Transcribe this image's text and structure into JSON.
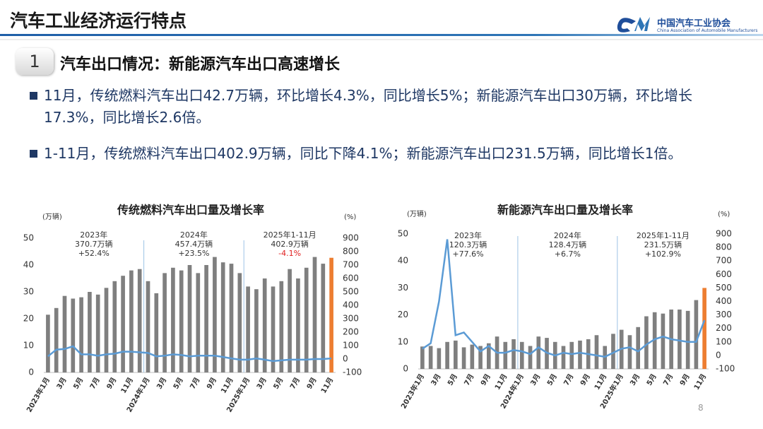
{
  "header": {
    "title": "汽车工业经济运行特点",
    "org_cn": "中国汽车工业协会",
    "org_en": "China Association of Automobile Manufacturers"
  },
  "section": {
    "number": "1",
    "title": "汽车出口情况：新能源汽车出口高速增长"
  },
  "bullets": [
    "11月，传统燃料汽车出口42.7万辆，环比增长4.3%，同比增长5%；新能源汽车出口30万辆，环比增长17.3%，同比增长2.6倍。",
    "1-11月，传统燃料汽车出口402.9万辆，同比下降4.1%；新能源汽车出口231.5万辆，同比增长1倍。"
  ],
  "page_number": "8",
  "chart_data": [
    {
      "type": "bar_line",
      "title": "传统燃料汽车出口量及增长率",
      "y_unit": "(万辆)",
      "y2_unit": "(%)",
      "categories": [
        "2023年1月",
        null,
        "3月",
        null,
        "5月",
        null,
        "7月",
        null,
        "9月",
        null,
        "11月",
        null,
        "2024年1月",
        null,
        "3月",
        null,
        "5月",
        null,
        "7月",
        null,
        "9月",
        null,
        "11月",
        null,
        "2025年1月",
        null,
        "3月",
        null,
        "5月",
        null,
        "7月",
        null,
        "9月",
        null,
        "11月"
      ],
      "series": [
        {
          "color": "#7f7f7f",
          "highlight_color": "#ed7d31",
          "values": [
            21.5,
            24,
            28.5,
            27.5,
            28,
            30,
            29,
            31.5,
            34,
            36,
            38,
            38.5,
            34,
            29.5,
            37,
            39,
            38,
            40,
            37,
            40,
            43,
            41,
            40.5,
            37,
            32,
            31,
            35,
            32,
            34,
            38.5,
            35,
            39,
            43,
            40.5,
            42.7
          ]
        },
        {
          "axis": "y2",
          "color": "#5b9bd5",
          "values": [
            20,
            70,
            75,
            95,
            35,
            35,
            25,
            35,
            40,
            55,
            55,
            50,
            45,
            20,
            25,
            35,
            30,
            20,
            25,
            25,
            25,
            15,
            5,
            -5,
            -5,
            5,
            -5,
            -15,
            -10,
            -5,
            -5,
            -5,
            0,
            0,
            5
          ]
        }
      ],
      "ylim": [
        0,
        50
      ],
      "yticks": [
        0,
        10,
        20,
        30,
        40,
        50
      ],
      "y2lim": [
        -100,
        900
      ],
      "y2ticks": [
        -100,
        0,
        100,
        200,
        300,
        400,
        500,
        600,
        700,
        800,
        900
      ],
      "annotations": [
        {
          "lines": [
            "2023年",
            "370.7万辆",
            "+52.4%"
          ],
          "colors": [
            "#333333",
            "#333333",
            "#333333"
          ]
        },
        {
          "lines": [
            "2024年",
            "457.4万辆",
            "+23.5%"
          ],
          "colors": [
            "#333333",
            "#333333",
            "#333333"
          ]
        },
        {
          "lines": [
            "2025年1-11月",
            "402.9万辆",
            "-4.1%"
          ],
          "colors": [
            "#333333",
            "#333333",
            "#e02020"
          ]
        }
      ]
    },
    {
      "type": "bar_line",
      "title": "新能源汽车出口量及增长率",
      "y_unit": "(万辆)",
      "y2_unit": "(%)",
      "categories": [
        "2023年1月",
        null,
        "3月",
        null,
        "5月",
        null,
        "7月",
        null,
        "9月",
        null,
        "11月",
        null,
        "2024年1月",
        null,
        "3月",
        null,
        "5月",
        null,
        "7月",
        null,
        "9月",
        null,
        "11月",
        null,
        "2025年1月",
        null,
        "3月",
        null,
        "5月",
        null,
        "7月",
        null,
        "9月",
        null,
        "11月"
      ],
      "series": [
        {
          "color": "#7f7f7f",
          "highlight_color": "#ed7d31",
          "values": [
            8.3,
            8.5,
            7.7,
            10,
            10.5,
            8,
            9,
            8.5,
            9.5,
            12,
            10,
            11,
            10,
            8.5,
            12,
            11.5,
            10,
            8.5,
            10,
            10.5,
            11,
            12.5,
            8.5,
            13,
            14.5,
            12.5,
            15.5,
            19.5,
            21,
            20.5,
            22,
            22,
            21.5,
            25.5,
            30
          ]
        },
        {
          "axis": "y2",
          "color": "#5b9bd5",
          "values": [
            50,
            90,
            400,
            860,
            150,
            170,
            100,
            30,
            70,
            20,
            20,
            40,
            30,
            10,
            60,
            20,
            0,
            20,
            10,
            20,
            10,
            0,
            -10,
            20,
            50,
            60,
            30,
            80,
            120,
            140,
            120,
            110,
            100,
            100,
            260
          ]
        }
      ],
      "ylim": [
        0,
        50
      ],
      "yticks": [
        0,
        10,
        20,
        30,
        40,
        50
      ],
      "y2lim": [
        -100,
        900
      ],
      "y2ticks": [
        -100,
        0,
        100,
        200,
        300,
        400,
        500,
        600,
        700,
        800,
        900
      ],
      "annotations": [
        {
          "lines": [
            "2023年",
            "120.3万辆",
            "+77.6%"
          ],
          "colors": [
            "#333333",
            "#333333",
            "#333333"
          ]
        },
        {
          "lines": [
            "2024年",
            "128.4万辆",
            "+6.7%"
          ],
          "colors": [
            "#333333",
            "#333333",
            "#333333"
          ]
        },
        {
          "lines": [
            "2025年1-11月",
            "231.5万辆",
            "+102.9%"
          ],
          "colors": [
            "#333333",
            "#333333",
            "#333333"
          ]
        }
      ]
    }
  ]
}
